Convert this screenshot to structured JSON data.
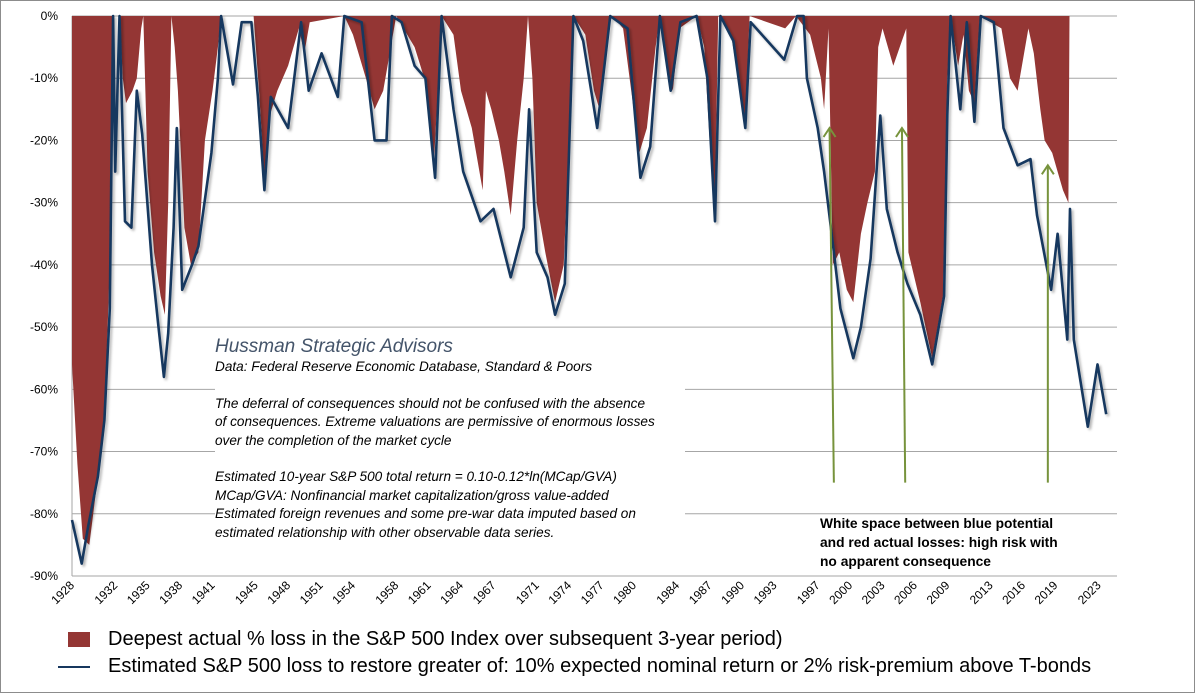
{
  "chart_data": {
    "type": "area",
    "ylim": [
      -90,
      0
    ],
    "xlim": [
      1928,
      2024.7
    ],
    "grid": true,
    "legend_placement": "bottom",
    "y_ticks": [
      "0%",
      "-10%",
      "-20%",
      "-30%",
      "-40%",
      "-50%",
      "-60%",
      "-70%",
      "-80%",
      "-90%"
    ],
    "y_tick_values": [
      0,
      -10,
      -20,
      -30,
      -40,
      -50,
      -60,
      -70,
      -80,
      -90
    ],
    "x_ticks": [
      "1928",
      "1932",
      "1935",
      "1938",
      "1941",
      "1945",
      "1948",
      "1951",
      "1954",
      "1958",
      "1961",
      "1964",
      "1967",
      "1971",
      "1974",
      "1977",
      "1980",
      "1984",
      "1987",
      "1990",
      "1993",
      "1997",
      "2000",
      "2003",
      "2006",
      "2009",
      "2013",
      "2016",
      "2019",
      "2023"
    ],
    "colors": {
      "actual": "#943634",
      "estimated": "#17375e",
      "arrows": "#77933c",
      "grid": "#a6a6a6"
    },
    "series": [
      {
        "name": "Deepest actual % loss in the S&P 500 Index over subsequent 3-year period)",
        "type": "area",
        "points": [
          [
            1928.0,
            -56
          ],
          [
            1928.5,
            -72
          ],
          [
            1929.0,
            -84
          ],
          [
            1929.6,
            -85
          ],
          [
            1930.4,
            -74
          ],
          [
            1931.0,
            -65
          ],
          [
            1931.5,
            -40
          ],
          [
            1931.8,
            0
          ],
          [
            1932.4,
            0
          ],
          [
            1932.7,
            -10
          ],
          [
            1933.0,
            -14
          ],
          [
            1933.6,
            -12
          ],
          [
            1934.0,
            -10
          ],
          [
            1934.4,
            -2
          ],
          [
            1934.6,
            0
          ],
          [
            1935.0,
            -25
          ],
          [
            1935.6,
            -38
          ],
          [
            1936.2,
            -45
          ],
          [
            1936.6,
            -48
          ],
          [
            1936.9,
            -30
          ],
          [
            1937.2,
            0
          ],
          [
            1937.5,
            -5
          ],
          [
            1937.8,
            -12
          ],
          [
            1938.4,
            -34
          ],
          [
            1939.0,
            -40
          ],
          [
            1939.7,
            -38
          ],
          [
            1940.3,
            -20
          ],
          [
            1941.0,
            -12
          ],
          [
            1941.5,
            -5
          ],
          [
            1941.8,
            0
          ],
          [
            1944.8,
            0
          ],
          [
            1945.3,
            -12
          ],
          [
            1945.8,
            -26
          ],
          [
            1946.3,
            -16
          ],
          [
            1947.0,
            -12
          ],
          [
            1948.0,
            -8
          ],
          [
            1949.0,
            -2
          ],
          [
            1949.5,
            -6
          ],
          [
            1950.0,
            -1
          ],
          [
            1953.2,
            0
          ],
          [
            1954.0,
            -3
          ],
          [
            1955.2,
            -10
          ],
          [
            1956.0,
            -15
          ],
          [
            1956.8,
            -12
          ],
          [
            1957.5,
            -5
          ],
          [
            1958.0,
            0
          ],
          [
            1959.7,
            -5
          ],
          [
            1960.6,
            -10
          ],
          [
            1961.5,
            -23
          ],
          [
            1962.0,
            -8
          ],
          [
            1962.2,
            0
          ],
          [
            1963.3,
            -3
          ],
          [
            1964.0,
            -12
          ],
          [
            1965.0,
            -18
          ],
          [
            1966.0,
            -28
          ],
          [
            1966.3,
            -12
          ],
          [
            1966.8,
            -15
          ],
          [
            1967.5,
            -20
          ],
          [
            1968.0,
            -25
          ],
          [
            1968.6,
            -32
          ],
          [
            1969.2,
            -20
          ],
          [
            1969.8,
            -10
          ],
          [
            1970.2,
            0
          ],
          [
            1970.6,
            -10
          ],
          [
            1971.0,
            -30
          ],
          [
            1971.8,
            -38
          ],
          [
            1972.7,
            -46
          ],
          [
            1973.5,
            -40
          ],
          [
            1974.0,
            -20
          ],
          [
            1974.4,
            0
          ],
          [
            1975.5,
            -3
          ],
          [
            1976.3,
            -12
          ],
          [
            1976.8,
            -15
          ],
          [
            1977.6,
            -2
          ],
          [
            1978.0,
            0
          ],
          [
            1979.0,
            -2
          ],
          [
            1979.6,
            -10
          ],
          [
            1980.5,
            -22
          ],
          [
            1981.2,
            -18
          ],
          [
            1982.0,
            -5
          ],
          [
            1982.4,
            0
          ],
          [
            1983.0,
            -8
          ],
          [
            1983.6,
            -12
          ],
          [
            1984.2,
            -2
          ],
          [
            1985.8,
            0
          ],
          [
            1986.5,
            -5
          ],
          [
            1987.0,
            -20
          ],
          [
            1987.5,
            -30
          ],
          [
            1987.8,
            0
          ],
          [
            1989.0,
            -3
          ],
          [
            1989.8,
            -12
          ],
          [
            1990.3,
            -17
          ],
          [
            1990.7,
            0
          ],
          [
            1994.0,
            -2
          ],
          [
            1995.0,
            0
          ],
          [
            1996.3,
            -3
          ],
          [
            1997.3,
            -10
          ],
          [
            1997.6,
            -15
          ],
          [
            1998.0,
            -2
          ],
          [
            1998.4,
            -40
          ],
          [
            1999.0,
            -38
          ],
          [
            1999.7,
            -44
          ],
          [
            2000.3,
            -46
          ],
          [
            2001.0,
            -35
          ],
          [
            2001.6,
            -30
          ],
          [
            2002.3,
            -25
          ],
          [
            2002.6,
            -5
          ],
          [
            2003.0,
            -2
          ],
          [
            2004.0,
            -8
          ],
          [
            2004.8,
            -4
          ],
          [
            2005.2,
            -2
          ],
          [
            2005.4,
            -38
          ],
          [
            2006.5,
            -46
          ],
          [
            2007.6,
            -55
          ],
          [
            2008.6,
            -45
          ],
          [
            2009.0,
            -10
          ],
          [
            2009.3,
            0
          ],
          [
            2010.0,
            -8
          ],
          [
            2010.5,
            -3
          ],
          [
            2011.0,
            -12
          ],
          [
            2011.5,
            -14
          ],
          [
            2012.0,
            0
          ],
          [
            2014.0,
            -2
          ],
          [
            2014.8,
            -10
          ],
          [
            2015.5,
            -12
          ],
          [
            2016.5,
            -2
          ],
          [
            2017.0,
            -6
          ],
          [
            2017.6,
            -15
          ],
          [
            2018.0,
            -20
          ],
          [
            2018.7,
            -22
          ],
          [
            2019.2,
            -25
          ],
          [
            2019.7,
            -28
          ],
          [
            2020.2,
            -30
          ],
          [
            2020.3,
            0
          ]
        ]
      },
      {
        "name": "Estimated S&P 500 loss to restore greater of: 10% expected nominal return or 2% risk-premium above T-bonds",
        "type": "line",
        "points": [
          [
            1928.0,
            -81
          ],
          [
            1928.9,
            -88
          ],
          [
            1929.5,
            -82
          ],
          [
            1930.4,
            -74
          ],
          [
            1931.0,
            -65
          ],
          [
            1931.5,
            -47
          ],
          [
            1931.8,
            0
          ],
          [
            1932.0,
            -25
          ],
          [
            1932.4,
            0
          ],
          [
            1932.9,
            -33
          ],
          [
            1933.5,
            -34
          ],
          [
            1934.0,
            -12
          ],
          [
            1934.5,
            -19
          ],
          [
            1935.4,
            -40
          ],
          [
            1936.0,
            -50
          ],
          [
            1936.5,
            -58
          ],
          [
            1936.9,
            -51
          ],
          [
            1937.4,
            -34
          ],
          [
            1937.7,
            -18
          ],
          [
            1938.2,
            -44
          ],
          [
            1939.1,
            -40
          ],
          [
            1939.7,
            -37
          ],
          [
            1940.9,
            -22
          ],
          [
            1941.5,
            -10
          ],
          [
            1941.8,
            0
          ],
          [
            1942.9,
            -11
          ],
          [
            1943.7,
            -1
          ],
          [
            1944.6,
            -1
          ],
          [
            1945.2,
            -13
          ],
          [
            1945.8,
            -28
          ],
          [
            1946.4,
            -13
          ],
          [
            1948.0,
            -18
          ],
          [
            1949.2,
            -1
          ],
          [
            1949.9,
            -12
          ],
          [
            1951.1,
            -6
          ],
          [
            1952.6,
            -13
          ],
          [
            1953.2,
            0
          ],
          [
            1954.8,
            -1
          ],
          [
            1956.0,
            -20
          ],
          [
            1957.1,
            -20
          ],
          [
            1957.6,
            0
          ],
          [
            1958.5,
            -1
          ],
          [
            1959.7,
            -8
          ],
          [
            1960.7,
            -10
          ],
          [
            1961.6,
            -26
          ],
          [
            1962.2,
            0
          ],
          [
            1963.3,
            -15
          ],
          [
            1964.2,
            -25
          ],
          [
            1965.8,
            -33
          ],
          [
            1967.0,
            -31
          ],
          [
            1968.6,
            -42
          ],
          [
            1969.8,
            -34
          ],
          [
            1970.3,
            -15
          ],
          [
            1971.0,
            -38
          ],
          [
            1972.0,
            -42
          ],
          [
            1972.7,
            -48
          ],
          [
            1973.6,
            -43
          ],
          [
            1974.4,
            0
          ],
          [
            1975.3,
            -4
          ],
          [
            1976.6,
            -18
          ],
          [
            1977.8,
            0
          ],
          [
            1979.4,
            -2
          ],
          [
            1980.6,
            -26
          ],
          [
            1981.5,
            -21
          ],
          [
            1982.4,
            0
          ],
          [
            1983.4,
            -12
          ],
          [
            1984.3,
            -1
          ],
          [
            1985.8,
            0
          ],
          [
            1986.8,
            -10
          ],
          [
            1987.5,
            -33
          ],
          [
            1988.0,
            0
          ],
          [
            1989.2,
            -4
          ],
          [
            1990.3,
            -18
          ],
          [
            1990.8,
            -1
          ],
          [
            1993.9,
            -7
          ],
          [
            1995.1,
            0
          ],
          [
            1995.7,
            0
          ],
          [
            1996.0,
            -10
          ],
          [
            1997.0,
            -18
          ],
          [
            1997.6,
            -25
          ],
          [
            1998.5,
            -38
          ],
          [
            1999.1,
            -47
          ],
          [
            2000.3,
            -55
          ],
          [
            2001.0,
            -50
          ],
          [
            2001.9,
            -39
          ],
          [
            2002.8,
            -16
          ],
          [
            2003.4,
            -31
          ],
          [
            2004.4,
            -38
          ],
          [
            2005.3,
            -43
          ],
          [
            2006.5,
            -48
          ],
          [
            2007.6,
            -56
          ],
          [
            2008.7,
            -45
          ],
          [
            2009.0,
            -16
          ],
          [
            2009.3,
            0
          ],
          [
            2010.2,
            -15
          ],
          [
            2010.8,
            -1
          ],
          [
            2011.5,
            -17
          ],
          [
            2012.1,
            0
          ],
          [
            2013.3,
            -1
          ],
          [
            2014.2,
            -18
          ],
          [
            2015.5,
            -24
          ],
          [
            2016.7,
            -23
          ],
          [
            2017.3,
            -32
          ],
          [
            2018.6,
            -44
          ],
          [
            2019.2,
            -35
          ],
          [
            2020.1,
            -52
          ],
          [
            2020.35,
            -31
          ],
          [
            2020.7,
            -52
          ],
          [
            2022.0,
            -66
          ],
          [
            2022.9,
            -56
          ],
          [
            2023.7,
            -64
          ]
        ]
      }
    ],
    "arrows": [
      {
        "from": [
          1998.5,
          -75
        ],
        "to": [
          1998.1,
          -18
        ]
      },
      {
        "from": [
          2005.1,
          -75
        ],
        "to": [
          2004.8,
          -18
        ]
      },
      {
        "from": [
          2018.3,
          -75
        ],
        "to": [
          2018.3,
          -24
        ]
      }
    ]
  },
  "note": {
    "title": "Hussman Strategic Advisors",
    "source": "Data: Federal Reserve Economic Database, Standard & Poors",
    "para1": [
      "The deferral of consequences  should not be confused with the absence",
      "of consequences.  Extreme valuations are permissive of enormous losses",
      "over the completion of the market cycle"
    ],
    "para2": [
      "Estimated 10-year S&P 500 total return = 0.10-0.12*ln(MCap/GVA)",
      "MCap/GVA: Nonfinancial market capitalization/gross value-added",
      "Estimated foreign revenues and some pre-war data imputed based on",
      "estimated relationship with other observable data series."
    ]
  },
  "callout": [
    "White space between blue potential",
    "and red actual losses: high risk with",
    "no apparent consequence"
  ],
  "legend": {
    "actual": "Deepest actual % loss in the S&P 500 Index over subsequent 3-year period)",
    "estimated": "Estimated S&P 500 loss to restore greater of: 10% expected nominal return or 2% risk-premium above T-bonds"
  }
}
